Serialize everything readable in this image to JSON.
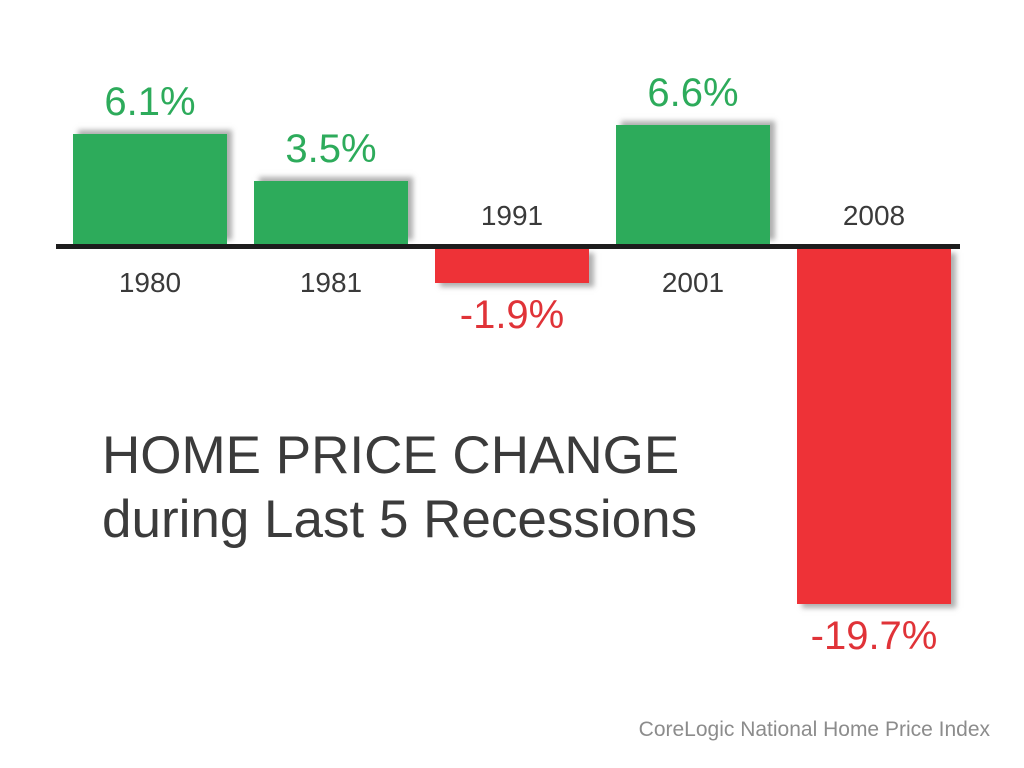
{
  "chart_data": {
    "type": "bar",
    "title": "HOME PRICE CHANGE",
    "subtitle": "during Last 5 Recessions",
    "source": "CoreLogic National Home Price Index",
    "categories": [
      "1980",
      "1981",
      "1991",
      "2001",
      "2008"
    ],
    "values": [
      6.1,
      3.5,
      -1.9,
      6.6,
      -19.7
    ],
    "value_labels": [
      "6.1%",
      "3.5%",
      "-1.9%",
      "6.6%",
      "-19.7%"
    ],
    "baseline": 0,
    "grid": false,
    "legend": "none",
    "colors": {
      "positive_bar": "#2dab5b",
      "negative_bar": "#ee3237",
      "positive_label": "#2dab5b",
      "negative_label": "#e03338",
      "axis": "#1d1d1d",
      "year_label": "#3a3a3a",
      "title": "#3b3b3b",
      "source": "#8c8c8c"
    }
  }
}
